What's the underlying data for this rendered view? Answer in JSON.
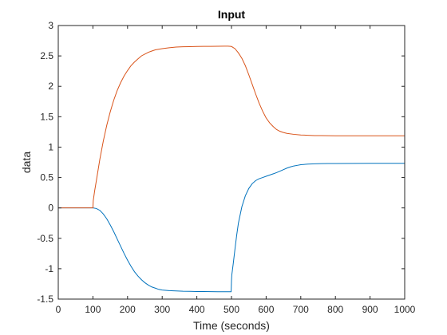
{
  "chart_data": {
    "type": "line",
    "title": "Input",
    "xlabel": "Time (seconds)",
    "ylabel": "data",
    "xlim": [
      0,
      1000
    ],
    "ylim": [
      -1.5,
      3
    ],
    "x_ticks": [
      0,
      100,
      200,
      300,
      400,
      500,
      600,
      700,
      800,
      900,
      1000
    ],
    "y_ticks": [
      -1.5,
      -1,
      -0.5,
      0,
      0.5,
      1,
      1.5,
      2,
      2.5,
      3
    ],
    "x_tick_labels": [
      "0",
      "100",
      "200",
      "300",
      "400",
      "500",
      "600",
      "700",
      "800",
      "900",
      "1000"
    ],
    "y_tick_labels": [
      "-1.5",
      "-1",
      "-0.5",
      "0",
      "0.5",
      "1",
      "1.5",
      "2",
      "2.5",
      "3"
    ],
    "grid": false,
    "box": true,
    "series": [
      {
        "color": "#0072BD",
        "x": [
          0,
          100,
          110,
          120,
          130,
          140,
          150,
          160,
          170,
          180,
          190,
          200,
          210,
          220,
          230,
          240,
          250,
          260,
          270,
          280,
          290,
          300,
          320,
          340,
          360,
          380,
          400,
          420,
          440,
          460,
          480,
          499,
          500,
          501,
          505,
          510,
          515,
          520,
          530,
          540,
          550,
          560,
          570,
          580,
          590,
          600,
          610,
          620,
          630,
          640,
          650,
          660,
          670,
          680,
          690,
          700,
          720,
          740,
          760,
          780,
          800,
          850,
          900,
          950,
          1000
        ],
        "y": [
          0,
          0,
          -0.01,
          -0.04,
          -0.1,
          -0.18,
          -0.28,
          -0.39,
          -0.51,
          -0.63,
          -0.75,
          -0.86,
          -0.96,
          -1.05,
          -1.12,
          -1.18,
          -1.23,
          -1.27,
          -1.3,
          -1.32,
          -1.34,
          -1.35,
          -1.36,
          -1.365,
          -1.37,
          -1.372,
          -1.375,
          -1.376,
          -1.377,
          -1.378,
          -1.378,
          -1.378,
          -1.2,
          -1.1,
          -0.92,
          -0.68,
          -0.45,
          -0.25,
          0.02,
          0.2,
          0.32,
          0.4,
          0.45,
          0.48,
          0.5,
          0.52,
          0.54,
          0.56,
          0.58,
          0.605,
          0.63,
          0.655,
          0.675,
          0.69,
          0.7,
          0.71,
          0.72,
          0.725,
          0.728,
          0.73,
          0.73,
          0.732,
          0.733,
          0.733,
          0.733
        ]
      },
      {
        "color": "#D95319",
        "x": [
          0,
          99,
          100,
          101,
          105,
          110,
          120,
          130,
          140,
          150,
          160,
          170,
          180,
          190,
          200,
          210,
          220,
          230,
          240,
          250,
          260,
          270,
          280,
          290,
          300,
          320,
          340,
          360,
          380,
          400,
          420,
          440,
          460,
          480,
          490,
          500,
          510,
          520,
          530,
          540,
          550,
          560,
          570,
          580,
          590,
          600,
          610,
          620,
          630,
          640,
          650,
          660,
          680,
          700,
          720,
          740,
          760,
          780,
          800,
          850,
          900,
          950,
          1000
        ],
        "y": [
          0,
          0,
          0,
          0.12,
          0.28,
          0.45,
          0.8,
          1.1,
          1.36,
          1.58,
          1.77,
          1.93,
          2.06,
          2.17,
          2.26,
          2.34,
          2.4,
          2.45,
          2.5,
          2.53,
          2.56,
          2.58,
          2.6,
          2.61,
          2.62,
          2.635,
          2.645,
          2.65,
          2.652,
          2.655,
          2.657,
          2.658,
          2.659,
          2.66,
          2.66,
          2.655,
          2.62,
          2.55,
          2.46,
          2.34,
          2.19,
          2.03,
          1.87,
          1.72,
          1.59,
          1.48,
          1.4,
          1.34,
          1.29,
          1.26,
          1.24,
          1.225,
          1.21,
          1.2,
          1.195,
          1.19,
          1.19,
          1.188,
          1.187,
          1.187,
          1.186,
          1.186,
          1.186
        ]
      }
    ]
  }
}
